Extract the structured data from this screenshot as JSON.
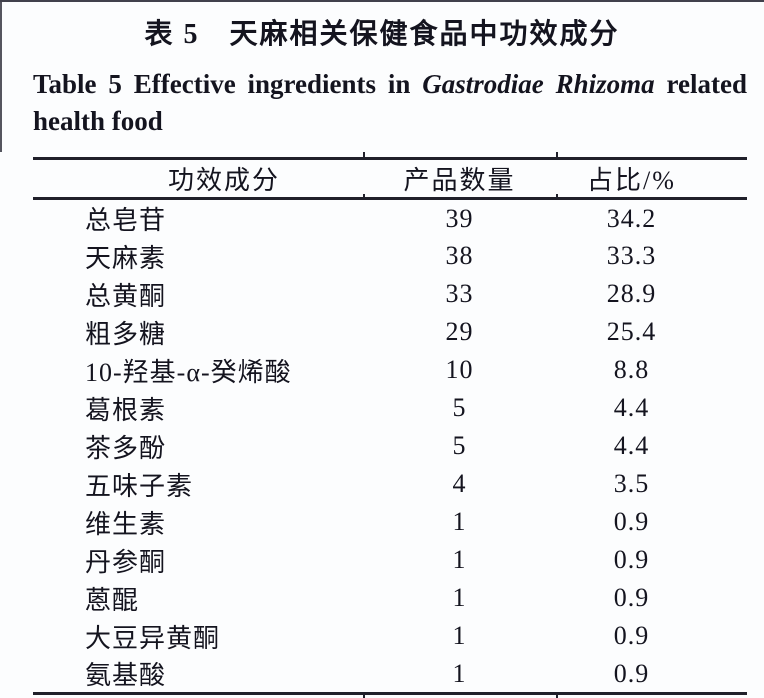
{
  "title": {
    "zh": "表 5　天麻相关保健食品中功效成分",
    "en_prefix": "Table 5",
    "en_mid": "Effective ingredients in",
    "en_italic": "Gastrodiae Rhizoma",
    "en_tail": "related",
    "en_line2": "health food"
  },
  "table": {
    "headers": [
      "功效成分",
      "产品数量",
      "占比/%"
    ],
    "rows": [
      [
        "总皂苷",
        "39",
        "34.2"
      ],
      [
        "天麻素",
        "38",
        "33.3"
      ],
      [
        "总黄酮",
        "33",
        "28.9"
      ],
      [
        "粗多糖",
        "29",
        "25.4"
      ],
      [
        "10-羟基-α-癸烯酸",
        "10",
        "8.8"
      ],
      [
        "葛根素",
        "5",
        "4.4"
      ],
      [
        "茶多酚",
        "5",
        "4.4"
      ],
      [
        "五味子素",
        "4",
        "3.5"
      ],
      [
        "维生素",
        "1",
        "0.9"
      ],
      [
        "丹参酮",
        "1",
        "0.9"
      ],
      [
        "蒽醌",
        "1",
        "0.9"
      ],
      [
        "大豆异黄酮",
        "1",
        "0.9"
      ],
      [
        "氨基酸",
        "1",
        "0.9"
      ]
    ]
  },
  "colors": {
    "text": "#14141f",
    "rule": "#20202a",
    "background": "#fcfdfe",
    "top_edge": "#41414c"
  }
}
